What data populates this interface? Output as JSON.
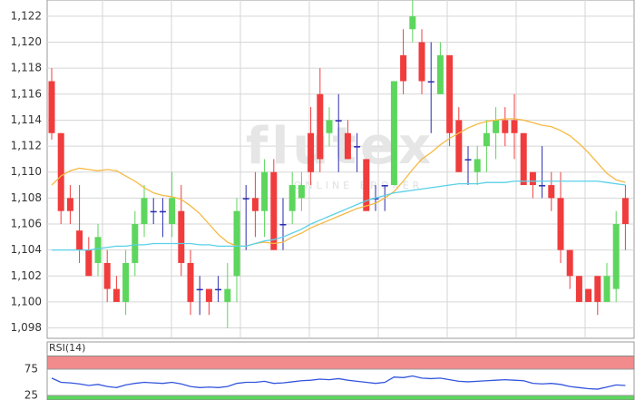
{
  "chart_data": [
    {
      "type": "candlestick",
      "watermark": "flutex",
      "watermark_sub": "ONLINE BROKER",
      "ylim": [
        1097.2,
        1123.25
      ],
      "yticks": [
        {
          "value": 1098,
          "label": "1,098"
        },
        {
          "value": 1100,
          "label": "1,100"
        },
        {
          "value": 1102,
          "label": "1,102"
        },
        {
          "value": 1104,
          "label": "1,104"
        },
        {
          "value": 1106,
          "label": "1,106"
        },
        {
          "value": 1108,
          "label": "1,108"
        },
        {
          "value": 1110,
          "label": "1,110"
        },
        {
          "value": 1112,
          "label": "1,112"
        },
        {
          "value": 1114,
          "label": "1,114"
        },
        {
          "value": 1116,
          "label": "1,116"
        },
        {
          "value": 1118,
          "label": "1,118"
        },
        {
          "value": 1120,
          "label": "1,120"
        },
        {
          "value": 1122,
          "label": "1,122"
        }
      ],
      "grid": true,
      "up_color": "#5cd65c",
      "down_color": "#f03c3c",
      "flat_color": "#2a2ab0",
      "candles": {
        "open": [
          1117,
          1113,
          1108,
          1105.5,
          1104,
          1103,
          1103,
          1101,
          1100,
          1103,
          1106,
          1107,
          1107,
          1106,
          1107,
          1103,
          1101,
          1101,
          1101,
          1100,
          1102,
          1108,
          1108,
          1107,
          1110,
          1106,
          1107,
          1108,
          1113,
          1116,
          1113,
          1114,
          1113,
          1112,
          1111,
          1108,
          1109,
          1109,
          1119,
          1121,
          1120,
          1117,
          1116,
          1119,
          1114,
          1111,
          1110,
          1112,
          1113,
          1114,
          1114,
          1113,
          1110,
          1109,
          1109,
          1108,
          1104,
          1102,
          1101,
          1102,
          1100,
          1101,
          1108
        ],
        "high": [
          1118,
          1113,
          1109,
          1109,
          1105,
          1106,
          1104,
          1102,
          1104,
          1107,
          1109,
          1108,
          1108,
          1110,
          1109,
          1104,
          1102,
          1101,
          1102,
          1103,
          1108,
          1109,
          1110,
          1111,
          1111,
          1108,
          1110,
          1110,
          1115,
          1118,
          1115,
          1116,
          1114,
          1113,
          1111,
          1109,
          1109,
          1117,
          1121,
          1124,
          1121,
          1120,
          1120,
          1119,
          1115,
          1112,
          1112,
          1114,
          1115,
          1115,
          1116,
          1113,
          1110,
          1112,
          1110,
          1110,
          1104,
          1102,
          1101,
          1102,
          1103,
          1107,
          1109
        ],
        "low": [
          1112.5,
          1106,
          1106,
          1103,
          1102,
          1102,
          1100,
          1100,
          1099,
          1102,
          1105,
          1106,
          1105,
          1105,
          1102,
          1099,
          1099,
          1099,
          1100,
          1098,
          1100,
          1104,
          1105,
          1105,
          1104,
          1104,
          1106,
          1107,
          1109,
          1110,
          1112,
          1110,
          1111,
          1110,
          1107,
          1107,
          1107,
          1109,
          1116,
          1120,
          1116,
          1113,
          1116,
          1112,
          1110,
          1109,
          1109,
          1110,
          1111,
          1112,
          1111,
          1109,
          1108,
          1108,
          1107,
          1103,
          1101,
          1100,
          1100,
          1099,
          1100,
          1100,
          1104
        ],
        "close": [
          1113,
          1107,
          1107,
          1104,
          1102,
          1105,
          1101,
          1100,
          1103,
          1106,
          1108,
          1107,
          1107,
          1108,
          1103,
          1100,
          1101,
          1100,
          1101,
          1101,
          1107,
          1108,
          1107,
          1110,
          1104,
          1106,
          1109,
          1109,
          1110,
          1111,
          1114,
          1114,
          1111,
          1112,
          1107,
          1108,
          1109,
          1117,
          1117,
          1122,
          1117,
          1117,
          1119,
          1113,
          1110,
          1111,
          1111,
          1113,
          1114,
          1113,
          1113,
          1109,
          1109,
          1109,
          1108,
          1104,
          1102,
          1100,
          1100,
          1100,
          1102,
          1106,
          1106
        ]
      },
      "lines": [
        {
          "color": "#f5b942",
          "values": [
            1109,
            1109.7,
            1110.1,
            1110.3,
            1110.2,
            1110.1,
            1110.2,
            1110.1,
            1109.7,
            1109.3,
            1108.8,
            1108.4,
            1108.2,
            1108.1,
            1107.9,
            1107.4,
            1106.8,
            1106,
            1105.2,
            1104.6,
            1104.3,
            1104.3,
            1104.5,
            1104.6,
            1104.5,
            1104.6,
            1105,
            1105.3,
            1105.7,
            1106,
            1106.3,
            1106.6,
            1106.9,
            1107.2,
            1107.4,
            1107.6,
            1108,
            1108.5,
            1109.3,
            1110.2,
            1111,
            1111.5,
            1112.1,
            1112.6,
            1113,
            1113.4,
            1113.7,
            1113.9,
            1114,
            1114.1,
            1114.1,
            1114,
            1113.8,
            1113.6,
            1113.5,
            1113.2,
            1112.8,
            1112.2,
            1111.5,
            1110.7,
            1109.9,
            1109.4,
            1109.2
          ]
        },
        {
          "color": "#5ad0e8",
          "values": [
            1104,
            1104,
            1104,
            1104,
            1104,
            1104.1,
            1104.2,
            1104.3,
            1104.3,
            1104.4,
            1104.4,
            1104.5,
            1104.5,
            1104.5,
            1104.5,
            1104.5,
            1104.4,
            1104.4,
            1104.3,
            1104.3,
            1104.3,
            1104.3,
            1104.5,
            1104.7,
            1104.8,
            1105,
            1105.3,
            1105.6,
            1106,
            1106.3,
            1106.6,
            1106.9,
            1107.2,
            1107.5,
            1107.8,
            1108,
            1108.2,
            1108.4,
            1108.5,
            1108.6,
            1108.7,
            1108.8,
            1108.9,
            1109,
            1109.1,
            1109.1,
            1109.1,
            1109.2,
            1109.2,
            1109.2,
            1109.3,
            1109.3,
            1109.3,
            1109.3,
            1109.3,
            1109.3,
            1109.3,
            1109.3,
            1109.3,
            1109.3,
            1109.2,
            1109.1,
            1109
          ]
        }
      ]
    },
    {
      "type": "line",
      "title": "RSI(14)",
      "ylim": [
        16.4,
        100
      ],
      "yticks": [
        75,
        25
      ],
      "bands": [
        {
          "from": 75,
          "to": 100,
          "color": "#f28b8b"
        },
        {
          "from": 16.4,
          "to": 25,
          "color": "#5cd65c"
        }
      ],
      "color": "#3355dd",
      "values": [
        58,
        50,
        49,
        47,
        44,
        46,
        42,
        40,
        45,
        48,
        50,
        49,
        48,
        50,
        47,
        42,
        40,
        41,
        40,
        42,
        48,
        50,
        50,
        52,
        48,
        49,
        51,
        53,
        54,
        56,
        55,
        57,
        54,
        52,
        50,
        48,
        50,
        60,
        59,
        62,
        58,
        57,
        58,
        55,
        52,
        51,
        52,
        53,
        54,
        55,
        54,
        53,
        48,
        47,
        48,
        46,
        42,
        40,
        38,
        37,
        41,
        45,
        44
      ]
    }
  ]
}
